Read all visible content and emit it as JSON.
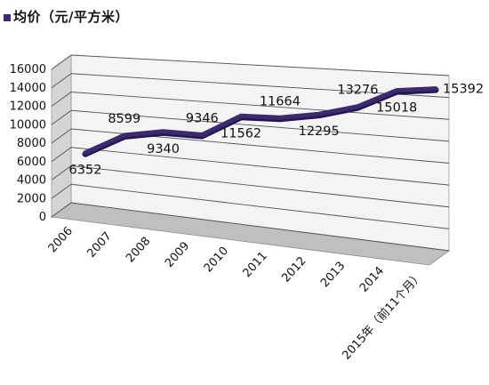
{
  "legend": {
    "label": "均价（元/平方米）"
  },
  "chart_data": {
    "type": "line",
    "categories": [
      "2006",
      "2007",
      "2008",
      "2009",
      "2010",
      "2011",
      "2012",
      "2013",
      "2014",
      "2015年（前11个月）"
    ],
    "series": [
      {
        "name": "均价（元/平方米）",
        "values": [
          6352,
          8599,
          9340,
          9346,
          11562,
          11664,
          12295,
          13276,
          15018,
          15392
        ]
      }
    ],
    "data_labels": [
      "6352",
      "8599",
      "9340",
      "9346",
      "11562",
      "11664",
      "12295",
      "13276",
      "15018",
      "15392"
    ],
    "yticks": [
      "0",
      "2000",
      "4000",
      "6000",
      "8000",
      "10000",
      "12000",
      "14000",
      "16000"
    ],
    "ylim": [
      0,
      16000
    ],
    "grid": true,
    "legend_position": "top-left",
    "colors": {
      "line": "#3b2a6e",
      "grid": "#555555",
      "wall": "#f4f4f4",
      "floor": "#bfbfbf"
    }
  }
}
